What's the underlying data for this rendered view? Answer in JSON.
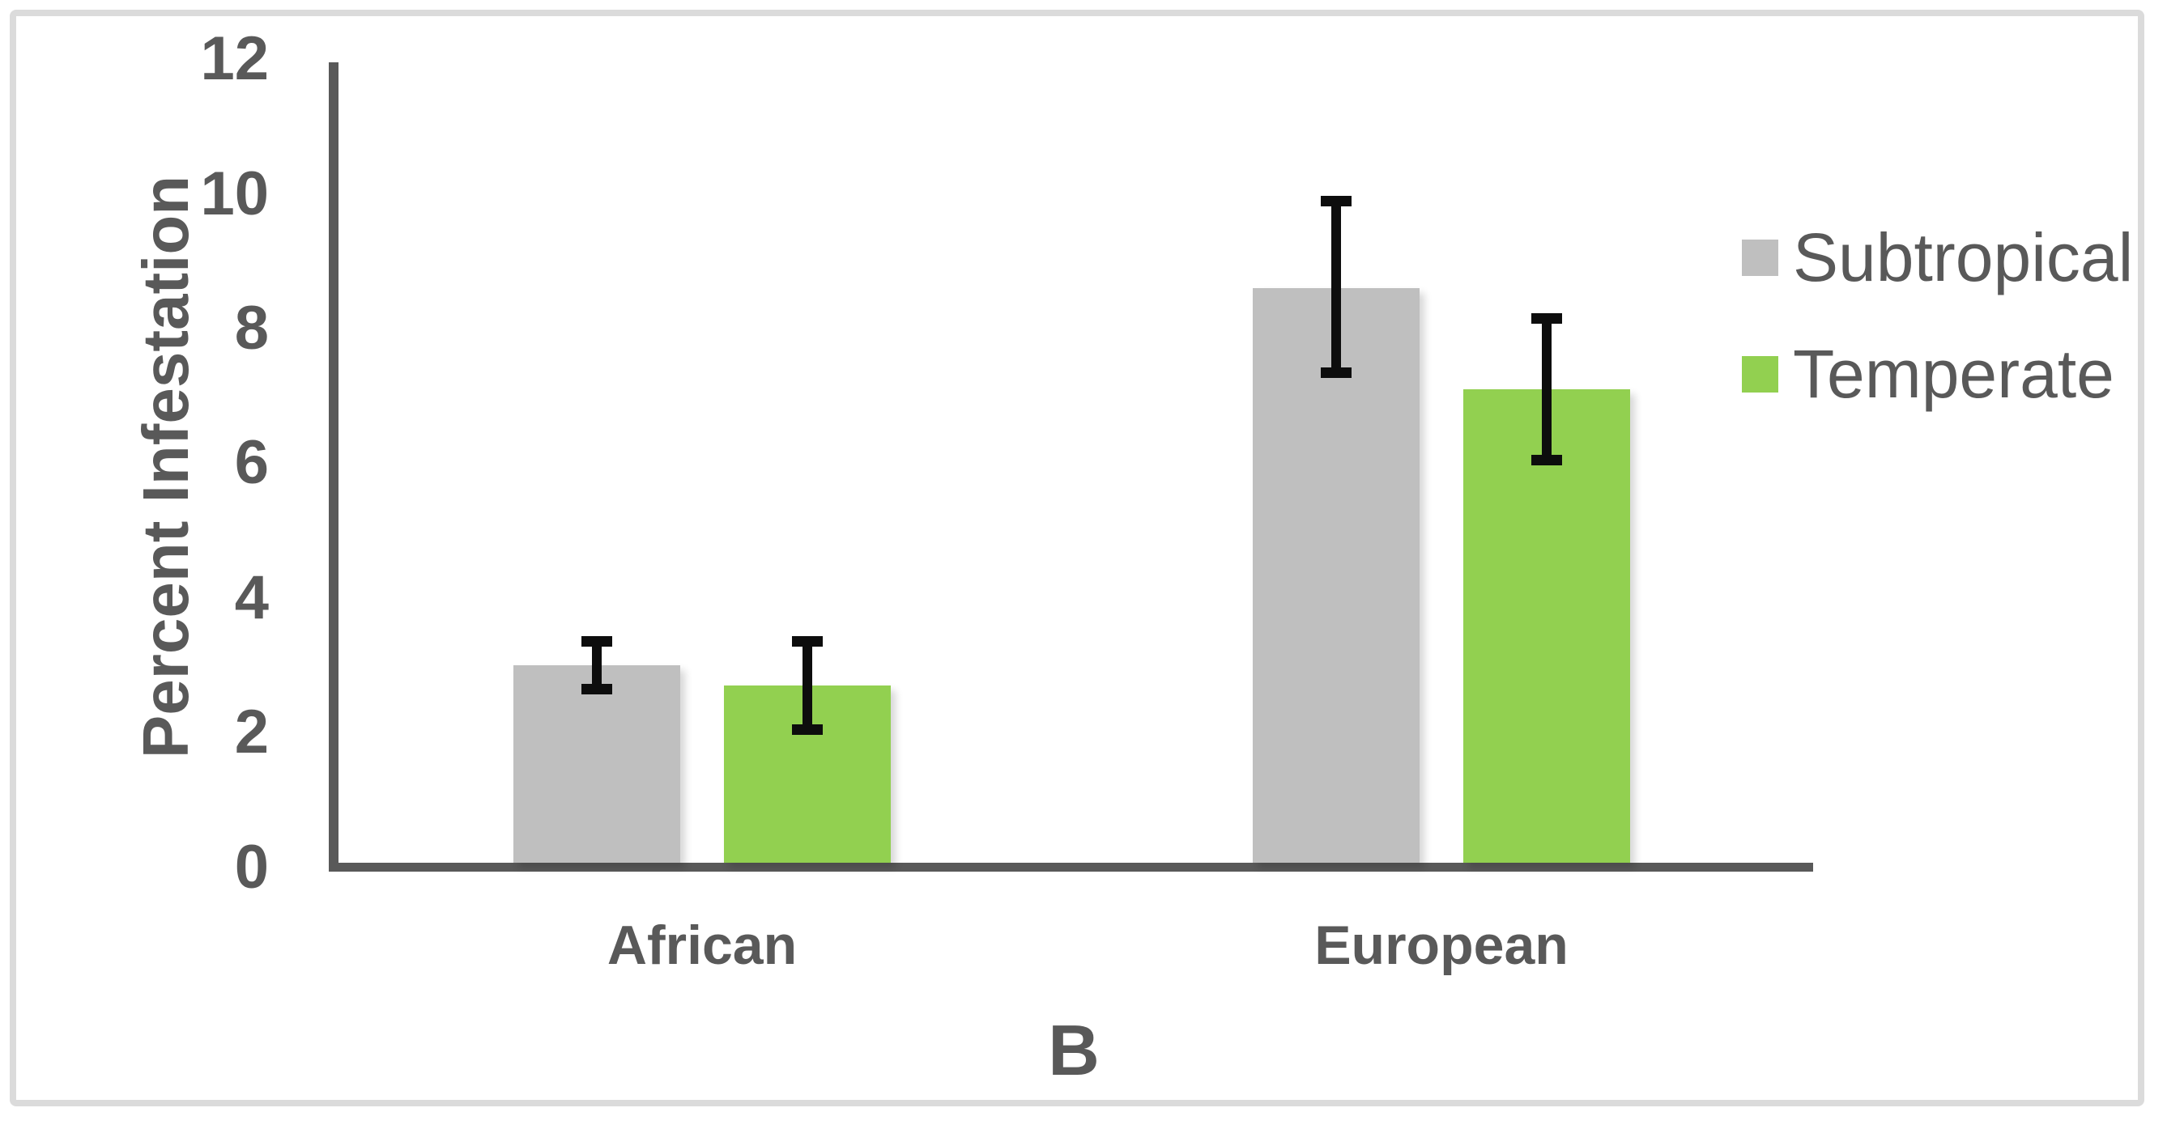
{
  "chart_data": {
    "type": "bar",
    "title": "",
    "panel_label": "B",
    "ylabel": "Percent Infestation",
    "xlabel": "",
    "categories": [
      "African",
      "European"
    ],
    "series": [
      {
        "name": "Subtropical",
        "color": "#BFBFBF",
        "values": [
          3.0,
          8.6
        ],
        "error_plus": [
          0.35,
          1.3
        ],
        "error_minus": [
          0.35,
          1.25
        ]
      },
      {
        "name": "Temperate",
        "color": "#92D050",
        "values": [
          2.7,
          7.1
        ],
        "error_plus": [
          0.65,
          1.05
        ],
        "error_minus": [
          0.65,
          1.05
        ]
      }
    ],
    "ylim": [
      0,
      12
    ],
    "yticks": [
      0,
      2,
      4,
      6,
      8,
      10,
      12
    ],
    "grid": "off",
    "legend_position": "right",
    "error_bar_color": "#0d0d0d",
    "axis_color": "#595959",
    "text_color": "#595959",
    "frame_border_color": "#DBDBDB"
  }
}
